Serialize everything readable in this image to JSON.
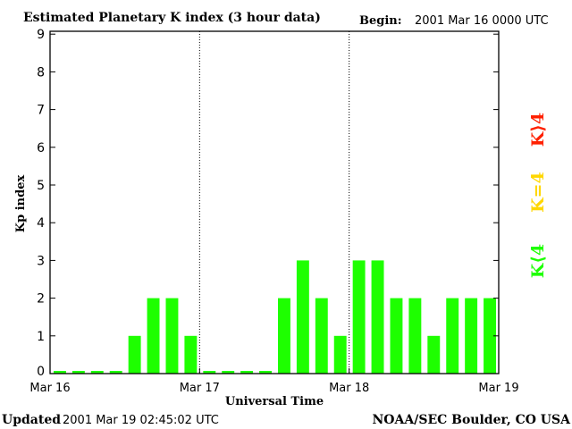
{
  "chart_data": {
    "type": "bar",
    "title": "Estimated Planetary K index (3 hour data)",
    "begin_label": "Begin:",
    "begin_value": "2001 Mar 16 0000 UTC",
    "xlabel": "Universal Time",
    "ylabel": "Kp index",
    "ylim": [
      0,
      9
    ],
    "yticks": [
      "0",
      "1",
      "2",
      "3",
      "4",
      "5",
      "6",
      "7",
      "8",
      "9"
    ],
    "xticks": [
      "Mar 16",
      "Mar 17",
      "Mar 18",
      "Mar 19"
    ],
    "bars_per_day": 8,
    "values": [
      0,
      0,
      0,
      0,
      1,
      2,
      2,
      1,
      0,
      0,
      0,
      0,
      2,
      3,
      2,
      1,
      3,
      3,
      2,
      2,
      1,
      2,
      2,
      2
    ],
    "legend": [
      {
        "label": "K⟨4",
        "color": "#1eff00"
      },
      {
        "label": "K=4",
        "color": "#ffd700"
      },
      {
        "label": "K⟩4",
        "color": "#ff2000"
      }
    ],
    "legend_placement": "right",
    "grid": "dotted vertical day separators"
  },
  "footer": {
    "updated_label": "Updated",
    "updated_value": "2001 Mar 19 02:45:02 UTC",
    "source": "NOAA/SEC Boulder, CO USA"
  }
}
